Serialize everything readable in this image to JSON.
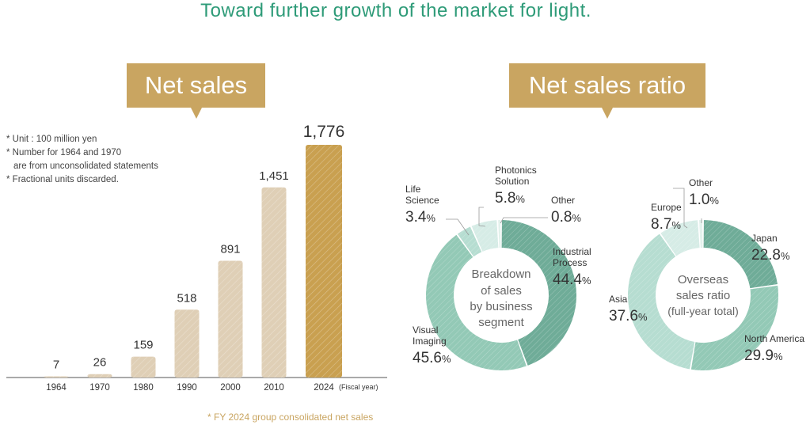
{
  "headline": "Toward further growth of the market for light.",
  "net_sales": {
    "badge": "Net sales",
    "notes": [
      "* Unit : 100 million yen",
      "* Number for 1964 and 1970",
      "  are from unconsolidated statements",
      "* Fractional units discarded."
    ],
    "fiscal_year_label": "(Fiscal year)",
    "footnote": "* FY 2024 group consolidated net sales"
  },
  "ratio": {
    "badge": "Net sales ratio",
    "business_center": [
      "Breakdown",
      "of sales",
      "by business",
      "segment"
    ],
    "overseas_center": [
      "Overseas",
      "sales ratio",
      "(full-year total)"
    ]
  },
  "chart_data": [
    {
      "type": "bar",
      "title": "Net sales",
      "categories": [
        "1964",
        "1970",
        "1980",
        "1990",
        "2000",
        "2010",
        "2024"
      ],
      "values": [
        7,
        26,
        159,
        518,
        891,
        1451,
        1776
      ],
      "value_labels": [
        "7",
        "26",
        "159",
        "518",
        "891",
        "1,451",
        "1,776"
      ],
      "colors": [
        "#dfcfb6",
        "#dfcfb6",
        "#dfcfb6",
        "#dfcfb6",
        "#dfcfb6",
        "#dfcfb6",
        "#c9a050"
      ],
      "ylim": [
        0,
        1776
      ]
    },
    {
      "type": "pie",
      "title": "Breakdown of sales by business segment",
      "slices": [
        {
          "label": [
            "Industrial",
            "Process"
          ],
          "value": 44.4,
          "color": "#6fac98"
        },
        {
          "label": [
            "Visual",
            "Imaging"
          ],
          "value": 45.6,
          "color": "#93c9b6"
        },
        {
          "label": [
            "Life",
            "Science"
          ],
          "value": 3.4,
          "color": "#b6ddd1"
        },
        {
          "label": [
            "Photonics",
            "Solution"
          ],
          "value": 5.8,
          "color": "#d6ece6"
        },
        {
          "label": [
            "Other"
          ],
          "value": 0.8,
          "color": "#e3f1ec"
        }
      ]
    },
    {
      "type": "pie",
      "title": "Overseas sales ratio (full-year total)",
      "slices": [
        {
          "label": [
            "Japan"
          ],
          "value": 22.8,
          "color": "#6fac98"
        },
        {
          "label": [
            "North America"
          ],
          "value": 29.9,
          "color": "#93c9b6"
        },
        {
          "label": [
            "Asia"
          ],
          "value": 37.6,
          "color": "#b6ddd1"
        },
        {
          "label": [
            "Europe"
          ],
          "value": 8.7,
          "color": "#d6ece6"
        },
        {
          "label": [
            "Other"
          ],
          "value": 1.0,
          "color": "#e3f1ec"
        }
      ]
    }
  ]
}
